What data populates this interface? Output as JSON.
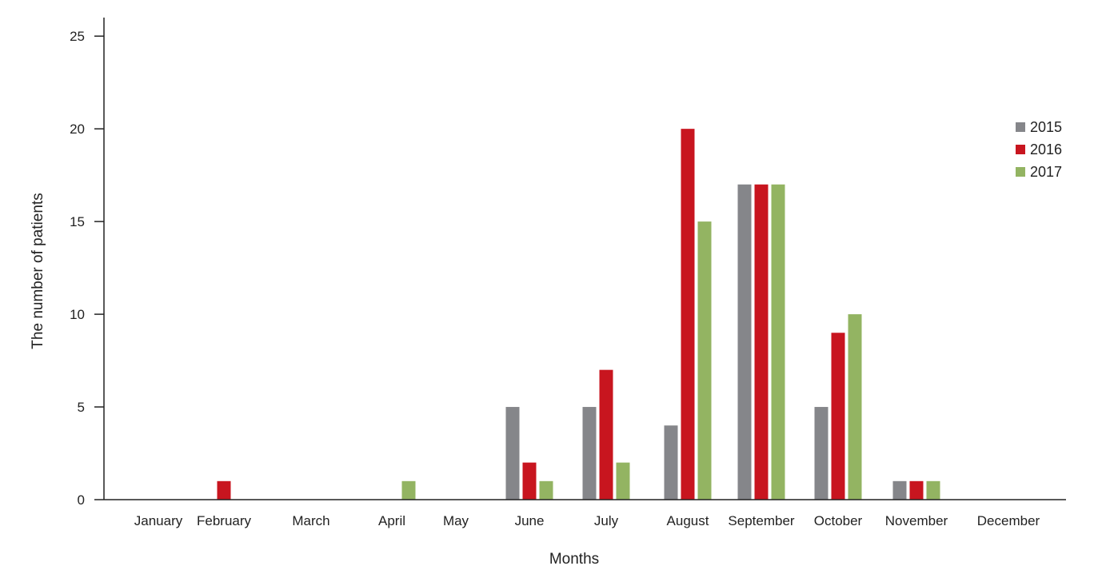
{
  "chart_data": {
    "type": "bar",
    "title": "",
    "xlabel": "Months",
    "ylabel": "The number of patients",
    "ylim": [
      0,
      26
    ],
    "yticks": [
      0,
      5,
      10,
      15,
      20,
      25
    ],
    "grid": false,
    "legend_position": "right",
    "categories": [
      "January",
      "February",
      "March",
      "April",
      "May",
      "June",
      "July",
      "August",
      "September",
      "October",
      "November",
      "December"
    ],
    "series": [
      {
        "name": "2015",
        "color": "#85868a",
        "values": [
          0,
          0,
          0,
          0,
          0,
          5,
          5,
          4,
          17,
          5,
          1,
          0
        ]
      },
      {
        "name": "2016",
        "color": "#c8151f",
        "values": [
          0,
          1,
          0,
          0,
          0,
          2,
          7,
          20,
          17,
          9,
          1,
          0
        ]
      },
      {
        "name": "2017",
        "color": "#93b462",
        "values": [
          0,
          0,
          0,
          1,
          0,
          1,
          2,
          15,
          17,
          10,
          1,
          0
        ]
      }
    ]
  }
}
